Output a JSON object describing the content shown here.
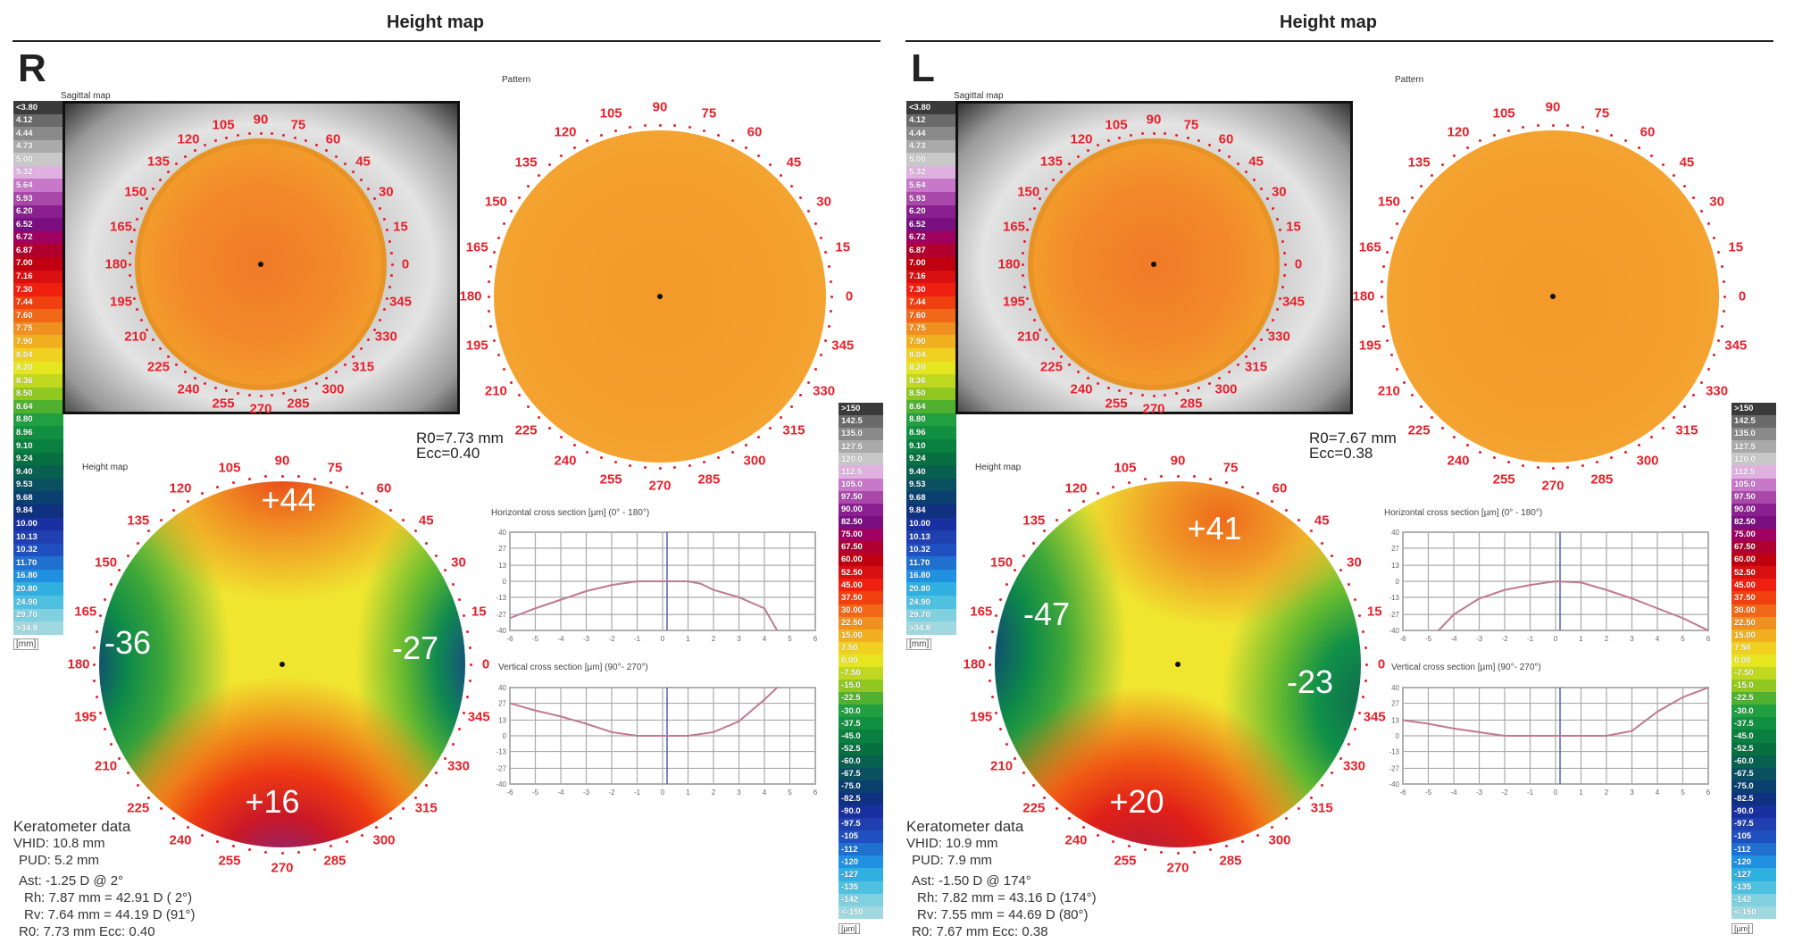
{
  "scale_colors": [
    "#3a3a3a",
    "#6a6a6a",
    "#8a8a8a",
    "#aaaaaa",
    "#c8c8c8",
    "#e0b0e0",
    "#c878c8",
    "#a848a8",
    "#8a2090",
    "#7a1080",
    "#a00060",
    "#b00030",
    "#c00010",
    "#d81010",
    "#f02010",
    "#f04010",
    "#f06818",
    "#f09020",
    "#f0b020",
    "#f0d020",
    "#e6e620",
    "#c0d820",
    "#90c820",
    "#50b030",
    "#20a040",
    "#109040",
    "#0a8040",
    "#087040",
    "#086050",
    "#0a5060",
    "#0a4070",
    "#103080",
    "#1830a0",
    "#2040b0",
    "#2050c0",
    "#2070d0",
    "#2090e0",
    "#30b0e0",
    "#50c0e0",
    "#80d0e0",
    "#a0d8e0"
  ],
  "sagittal_scale": {
    "labels": [
      "<3.80",
      "4.12",
      "4.44",
      "4.73",
      "5.00",
      "5.32",
      "5.64",
      "5.93",
      "6.20",
      "6.52",
      "6.72",
      "6.87",
      "7.00",
      "7.16",
      "7.30",
      "7.44",
      "7.60",
      "7.75",
      "7.90",
      "8.04",
      "8.20",
      "8.36",
      "8.50",
      "8.64",
      "8.80",
      "8.96",
      "9.10",
      "9.24",
      "9.40",
      "9.53",
      "9.68",
      "9.84",
      "10.00",
      "10.13",
      "10.32",
      "11.70",
      "16.80",
      "20.80",
      "24.90",
      "29.70",
      ">34.8"
    ],
    "unit": "[mm]"
  },
  "height_scale": {
    "labels": [
      ">150",
      "142.5",
      "135.0",
      "127.5",
      "120.0",
      "112.5",
      "105.0",
      "97.50",
      "90.00",
      "82.50",
      "75.00",
      "67.50",
      "60.00",
      "52.50",
      "45.00",
      "37.50",
      "30.00",
      "22.50",
      "15.00",
      "7.50",
      "0.00",
      "-7.50",
      "-15.0",
      "-22.5",
      "-30.0",
      "-37.5",
      "-45.0",
      "-52.5",
      "-60.0",
      "-67.5",
      "-75.0",
      "-82.5",
      "-90.0",
      "-97.5",
      "-105",
      "-112",
      "-120",
      "-127",
      "-135",
      "-142",
      "<-150"
    ],
    "unit": "[µm]"
  },
  "angles": [
    "0",
    "15",
    "30",
    "45",
    "60",
    "75",
    "90",
    "105",
    "120",
    "135",
    "150",
    "165",
    "180",
    "195",
    "210",
    "225",
    "240",
    "255",
    "270",
    "285",
    "300",
    "315",
    "330",
    "345"
  ],
  "panels": [
    {
      "header": "Height map",
      "eye": "R",
      "sagittal_label": "Sagittal map",
      "pattern_label": "Pattern",
      "height_label": "Height map",
      "r0": "R0=7.73 mm",
      "ecc": "Ecc=0.40",
      "values": {
        "top": "+44",
        "left": "-36",
        "right": "-27",
        "bottom": "+16"
      },
      "h_title": "Horizontal cross section [µm]   (0° - 180°)",
      "v_title": "Vertical cross section [µm]   (90°- 270°)",
      "keratometer": [
        "Keratometer data",
        "VHID: 10.8 mm",
        "PUD: 5.2 mm",
        "Ast: -1.25 D @  2°",
        "Rh: 7.87 mm = 42.91 D ( 2°)",
        "Rv: 7.64 mm = 44.19 D (91°)",
        "R0: 7.73 mm  Ecc: 0.40"
      ]
    },
    {
      "header": "Height map",
      "eye": "L",
      "sagittal_label": "Sagittal map",
      "pattern_label": "Pattern",
      "height_label": "Height map",
      "r0": "R0=7.67 mm",
      "ecc": "Ecc=0.38",
      "values": {
        "top": "+41",
        "left": "-47",
        "right": "-23",
        "bottom": "+20"
      },
      "h_title": "Horizontal cross section [µm]   (0° - 180°)",
      "v_title": "Vertical cross section [µm]   (90°- 270°)",
      "keratometer": [
        "Keratometer data",
        "VHID: 10.9 mm",
        "PUD: 7.9 mm",
        "Ast: -1.50 D @ 174°",
        "Rh: 7.82 mm = 43.16 D (174°)",
        "Rv: 7.55 mm = 44.69 D (80°)",
        "R0: 7.67 mm  Ecc: 0.38"
      ]
    }
  ],
  "chart_data": [
    {
      "type": "line",
      "panel": "R",
      "title": "Horizontal cross section [µm]   (0° - 180°)",
      "xlim": [
        -6,
        6
      ],
      "ylim": [
        -40,
        40
      ],
      "xticks": [
        "-6",
        "-5",
        "-4",
        "-3",
        "-2",
        "-1",
        "0",
        "1",
        "2",
        "3",
        "4",
        "5",
        "6"
      ],
      "yticks": [
        "40",
        "27",
        "13",
        "0",
        "-13",
        "-27",
        "-40"
      ],
      "grid": true,
      "x": [
        -6,
        -5,
        -4,
        -3,
        -2,
        -1,
        0,
        1,
        1.5,
        2,
        3,
        4,
        4.5
      ],
      "y": [
        -30,
        -22,
        -15,
        -8,
        -3,
        0,
        0,
        0,
        -2,
        -7,
        -13,
        -22,
        -40
      ]
    },
    {
      "type": "line",
      "panel": "R",
      "title": "Vertical cross section [µm]   (90°- 270°)",
      "xlim": [
        -6,
        6
      ],
      "ylim": [
        -40,
        40
      ],
      "xticks": [
        "-6",
        "-5",
        "-4",
        "-3",
        "-2",
        "-1",
        "0",
        "1",
        "2",
        "3",
        "4",
        "5",
        "6"
      ],
      "yticks": [
        "40",
        "27",
        "13",
        "0",
        "-13",
        "-27",
        "-40"
      ],
      "grid": true,
      "x": [
        -6,
        -5,
        -4,
        -3,
        -2,
        -1,
        0,
        1,
        2,
        3,
        4,
        4.5
      ],
      "y": [
        27,
        21,
        16,
        10,
        3,
        0,
        0,
        0,
        3,
        12,
        30,
        40
      ]
    },
    {
      "type": "line",
      "panel": "L",
      "title": "Horizontal cross section [µm]   (0° - 180°)",
      "xlim": [
        -6,
        6
      ],
      "ylim": [
        -40,
        40
      ],
      "xticks": [
        "-6",
        "-5",
        "-4",
        "-3",
        "-2",
        "-1",
        "0",
        "1",
        "2",
        "3",
        "4",
        "5",
        "6"
      ],
      "yticks": [
        "40",
        "27",
        "13",
        "0",
        "-13",
        "-27",
        "-40"
      ],
      "grid": true,
      "x": [
        -4.6,
        -4,
        -3,
        -2,
        -1,
        0,
        1,
        2,
        3,
        4,
        5,
        6
      ],
      "y": [
        -40,
        -27,
        -14,
        -7,
        -3,
        0,
        -1,
        -7,
        -14,
        -22,
        -30,
        -40
      ]
    },
    {
      "type": "line",
      "panel": "L",
      "title": "Vertical cross section [µm]   (90°- 270°)",
      "xlim": [
        -6,
        6
      ],
      "ylim": [
        -40,
        40
      ],
      "xticks": [
        "-6",
        "-5",
        "-4",
        "-3",
        "-2",
        "-1",
        "0",
        "1",
        "2",
        "3",
        "4",
        "5",
        "6"
      ],
      "yticks": [
        "40",
        "27",
        "13",
        "0",
        "-13",
        "-27",
        "-40"
      ],
      "grid": true,
      "x": [
        -6,
        -5,
        -4,
        -3,
        -2,
        0,
        2,
        3,
        4,
        5,
        6
      ],
      "y": [
        13,
        10,
        6,
        3,
        0,
        0,
        0,
        4,
        20,
        32,
        40
      ]
    }
  ]
}
